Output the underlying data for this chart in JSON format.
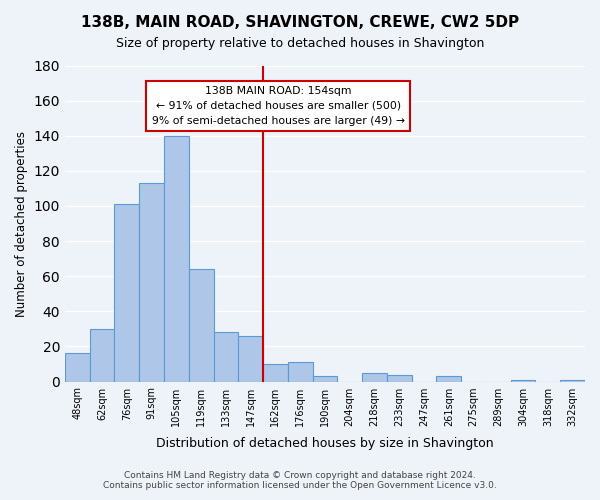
{
  "title": "138B, MAIN ROAD, SHAVINGTON, CREWE, CW2 5DP",
  "subtitle": "Size of property relative to detached houses in Shavington",
  "xlabel": "Distribution of detached houses by size in Shavington",
  "ylabel": "Number of detached properties",
  "bin_labels": [
    "48sqm",
    "62sqm",
    "76sqm",
    "91sqm",
    "105sqm",
    "119sqm",
    "133sqm",
    "147sqm",
    "162sqm",
    "176sqm",
    "190sqm",
    "204sqm",
    "218sqm",
    "233sqm",
    "247sqm",
    "261sqm",
    "275sqm",
    "289sqm",
    "304sqm",
    "318sqm",
    "332sqm"
  ],
  "bar_heights": [
    16,
    30,
    101,
    113,
    140,
    64,
    28,
    26,
    10,
    11,
    3,
    0,
    5,
    4,
    0,
    3,
    0,
    0,
    1,
    0,
    1
  ],
  "bar_color": "#aec6e8",
  "bar_edge_color": "#5b9bd5",
  "vline_color": "#cc0000",
  "annotation_title": "138B MAIN ROAD: 154sqm",
  "annotation_line1": "← 91% of detached houses are smaller (500)",
  "annotation_line2": "9% of semi-detached houses are larger (49) →",
  "annotation_box_color": "#ffffff",
  "annotation_box_edge": "#cc0000",
  "ylim": [
    0,
    180
  ],
  "yticks": [
    0,
    20,
    40,
    60,
    80,
    100,
    120,
    140,
    160,
    180
  ],
  "footer1": "Contains HM Land Registry data © Crown copyright and database right 2024.",
  "footer2": "Contains public sector information licensed under the Open Government Licence v3.0.",
  "bg_color": "#eef2f9"
}
